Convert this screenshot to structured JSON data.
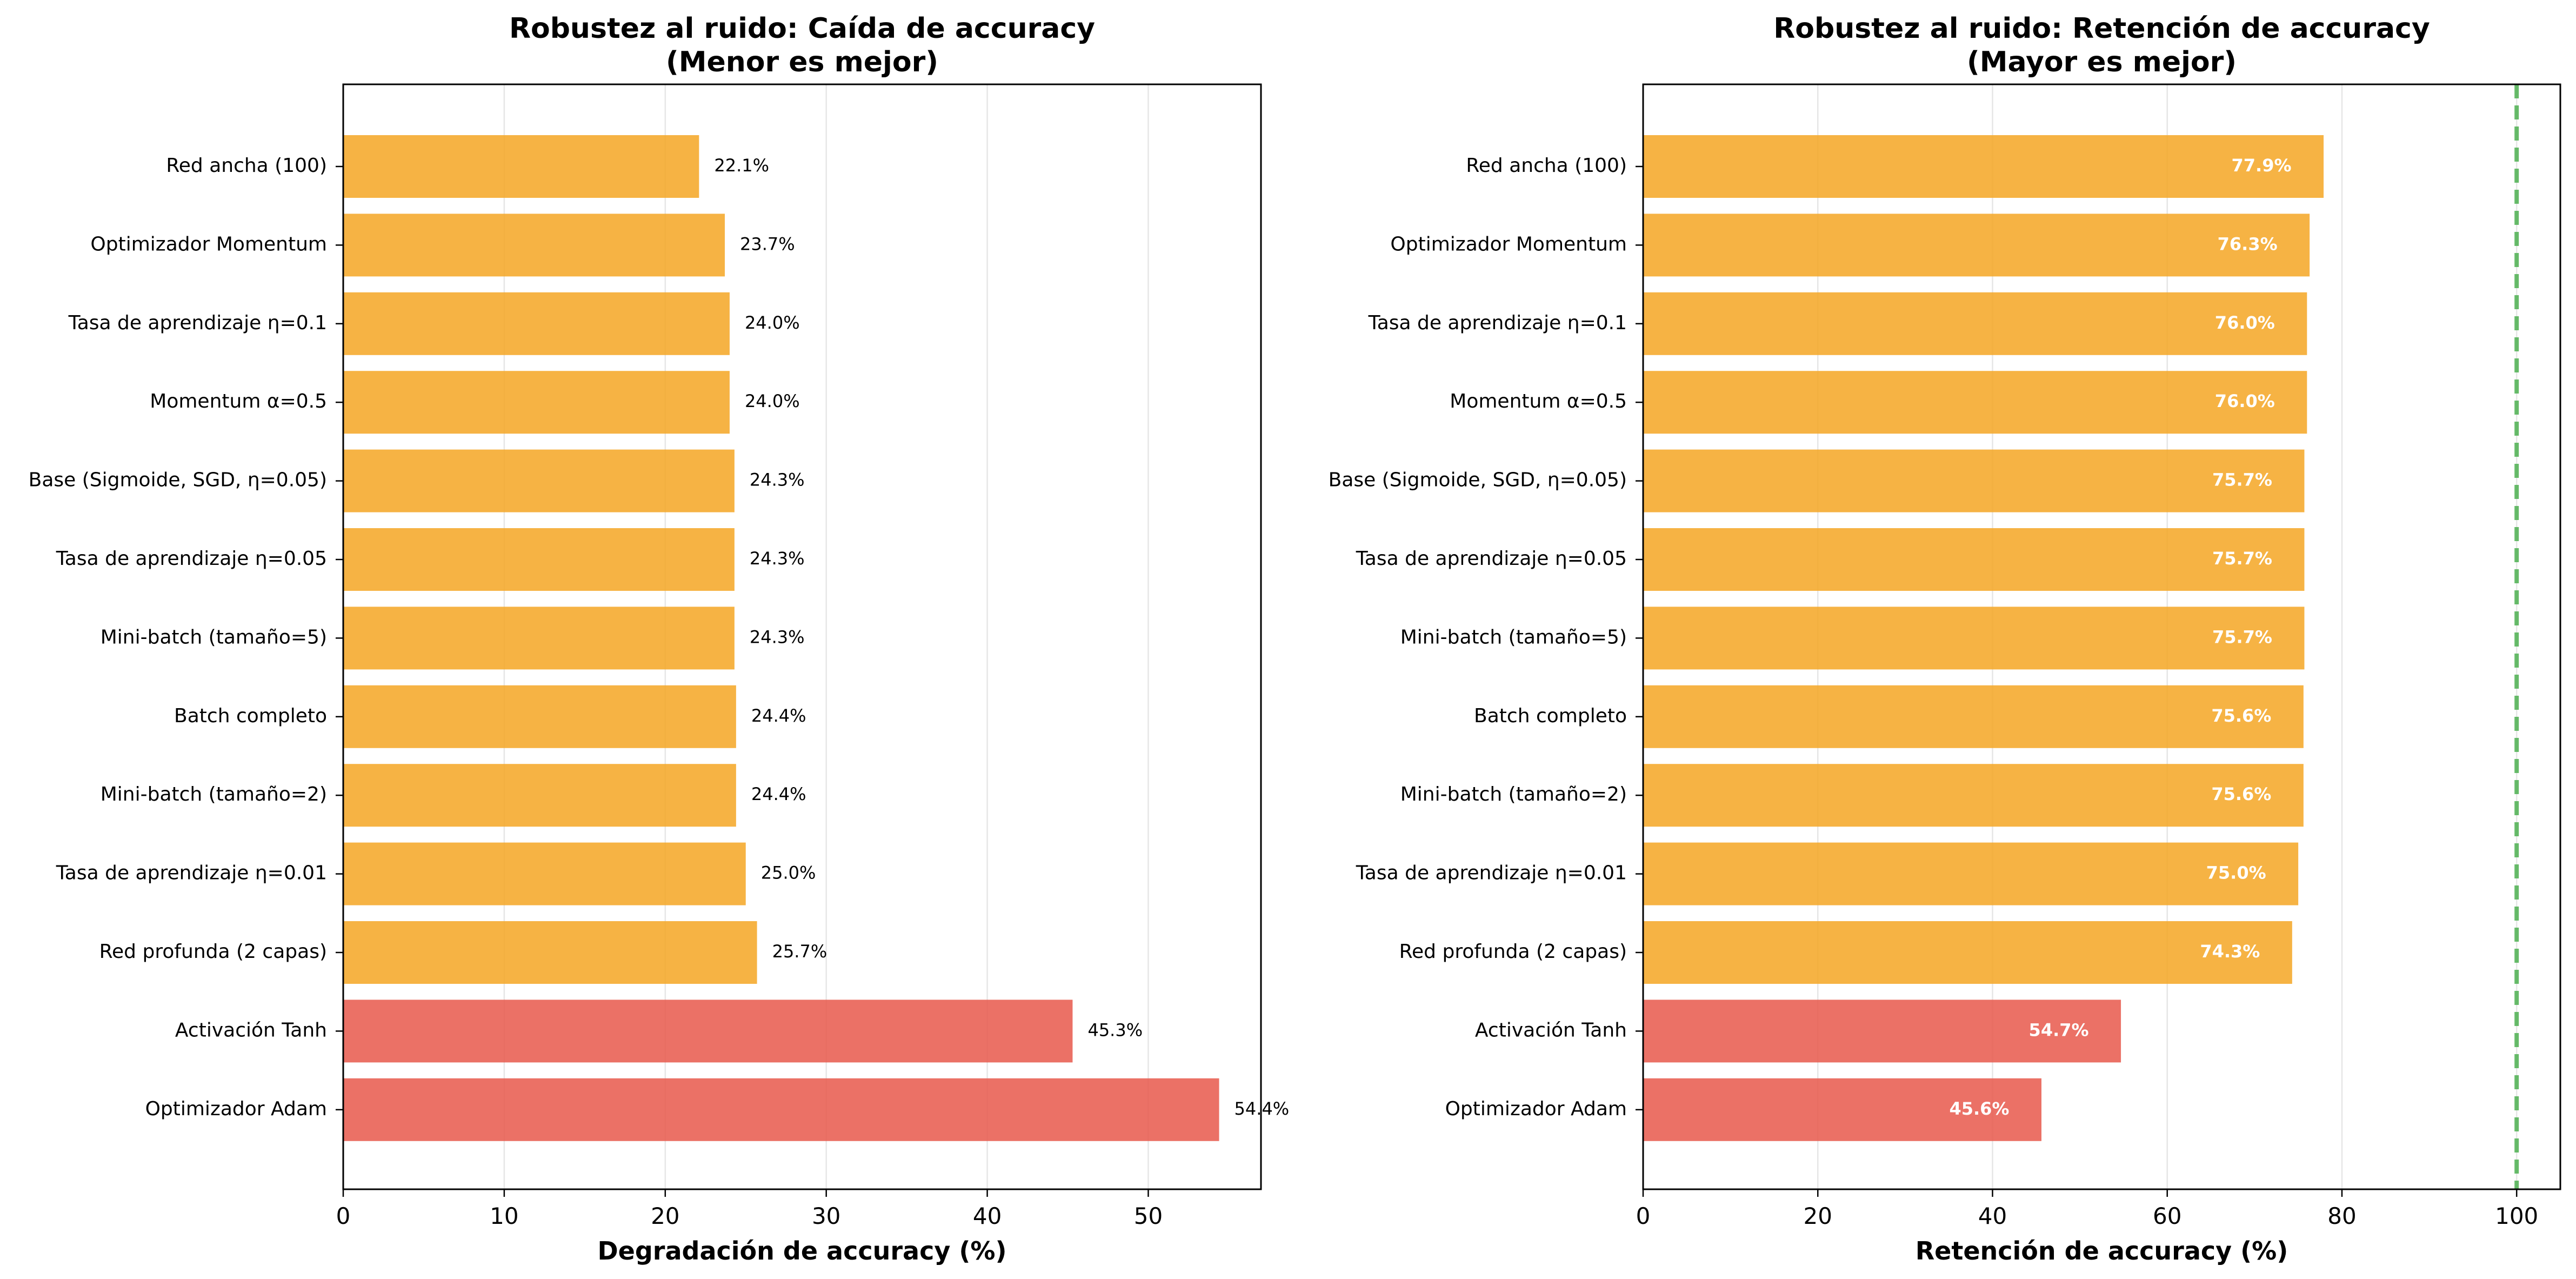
{
  "colors": {
    "good": "#f5a623",
    "bad": "#e8584b",
    "reference_line": "#4caf50"
  },
  "chart_data": [
    {
      "type": "bar",
      "orientation": "horizontal",
      "title_line1": "Robustez al ruido: Caída de accuracy",
      "title_line2": "(Menor es mejor)",
      "xlabel": "Degradación de accuracy (%)",
      "xlim": [
        0,
        57
      ],
      "xticks": [
        0,
        10,
        20,
        30,
        40,
        50
      ],
      "grid": "x",
      "value_labels": "outside",
      "categories": [
        "Red ancha (100)",
        "Optimizador Momentum",
        "Tasa de aprendizaje η=0.1",
        "Momentum α=0.5",
        "Base (Sigmoide, SGD, η=0.05)",
        "Tasa de aprendizaje η=0.05",
        "Mini-batch (tamaño=5)",
        "Batch completo",
        "Mini-batch (tamaño=2)",
        "Tasa de aprendizaje η=0.01",
        "Red profunda (2 capas)",
        "Activación Tanh",
        "Optimizador Adam"
      ],
      "values": [
        22.1,
        23.7,
        24.0,
        24.0,
        24.3,
        24.3,
        24.3,
        24.4,
        24.4,
        25.0,
        25.7,
        45.3,
        54.4
      ],
      "labels": [
        "22.1%",
        "23.7%",
        "24.0%",
        "24.0%",
        "24.3%",
        "24.3%",
        "24.3%",
        "24.4%",
        "24.4%",
        "25.0%",
        "25.7%",
        "45.3%",
        "54.4%"
      ],
      "bar_colors": [
        "good",
        "good",
        "good",
        "good",
        "good",
        "good",
        "good",
        "good",
        "good",
        "good",
        "good",
        "bad",
        "bad"
      ]
    },
    {
      "type": "bar",
      "orientation": "horizontal",
      "title_line1": "Robustez al ruido: Retención de accuracy",
      "title_line2": "(Mayor es mejor)",
      "xlabel": "Retención de accuracy (%)",
      "xlim": [
        0,
        105
      ],
      "xticks": [
        0,
        20,
        40,
        60,
        80,
        100
      ],
      "grid": "x",
      "value_labels": "inside",
      "reference_line_x": 100,
      "categories": [
        "Red ancha (100)",
        "Optimizador Momentum",
        "Tasa de aprendizaje η=0.1",
        "Momentum α=0.5",
        "Base (Sigmoide, SGD, η=0.05)",
        "Tasa de aprendizaje η=0.05",
        "Mini-batch (tamaño=5)",
        "Batch completo",
        "Mini-batch (tamaño=2)",
        "Tasa de aprendizaje η=0.01",
        "Red profunda (2 capas)",
        "Activación Tanh",
        "Optimizador Adam"
      ],
      "values": [
        77.9,
        76.3,
        76.0,
        76.0,
        75.7,
        75.7,
        75.7,
        75.6,
        75.6,
        75.0,
        74.3,
        54.7,
        45.6
      ],
      "labels": [
        "77.9%",
        "76.3%",
        "76.0%",
        "76.0%",
        "75.7%",
        "75.7%",
        "75.7%",
        "75.6%",
        "75.6%",
        "75.0%",
        "74.3%",
        "54.7%",
        "45.6%"
      ],
      "bar_colors": [
        "good",
        "good",
        "good",
        "good",
        "good",
        "good",
        "good",
        "good",
        "good",
        "good",
        "good",
        "bad",
        "bad"
      ]
    }
  ]
}
